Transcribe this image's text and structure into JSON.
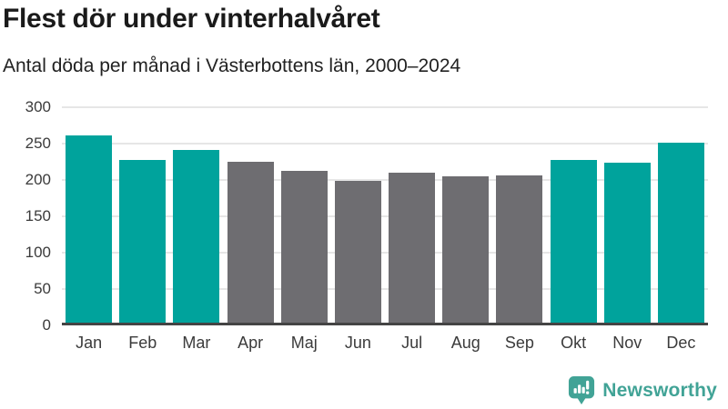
{
  "header": {
    "title": "Flest dör under vinterhalvåret",
    "subtitle": "Antal döda per månad i Västerbottens län, 2000–2024"
  },
  "chart_data": {
    "type": "bar",
    "title": "Flest dör under vinterhalvåret",
    "subtitle": "Antal döda per månad i Västerbottens län, 2000–2024",
    "categories": [
      "Jan",
      "Feb",
      "Mar",
      "Apr",
      "Maj",
      "Jun",
      "Jul",
      "Aug",
      "Sep",
      "Okt",
      "Nov",
      "Dec"
    ],
    "values": [
      257,
      224,
      237,
      221,
      209,
      195,
      206,
      201,
      202,
      224,
      220,
      247
    ],
    "highlighted_categories": [
      "Jan",
      "Feb",
      "Mar",
      "Okt",
      "Nov",
      "Dec"
    ],
    "yticks": [
      0,
      50,
      100,
      150,
      200,
      250,
      300
    ],
    "ylim": [
      0,
      300
    ],
    "xlabel": "",
    "ylabel": "",
    "grid": true,
    "legend": "none",
    "colors": {
      "highlight": "#00a39c",
      "default": "#6e6d71",
      "gridline": "#e6e6e6",
      "axis": "#444444"
    }
  },
  "footer": {
    "brand": "Newsworthy",
    "brand_color": "#41a396",
    "logo_icon": "speech-bubble-bar-chart-icon"
  }
}
